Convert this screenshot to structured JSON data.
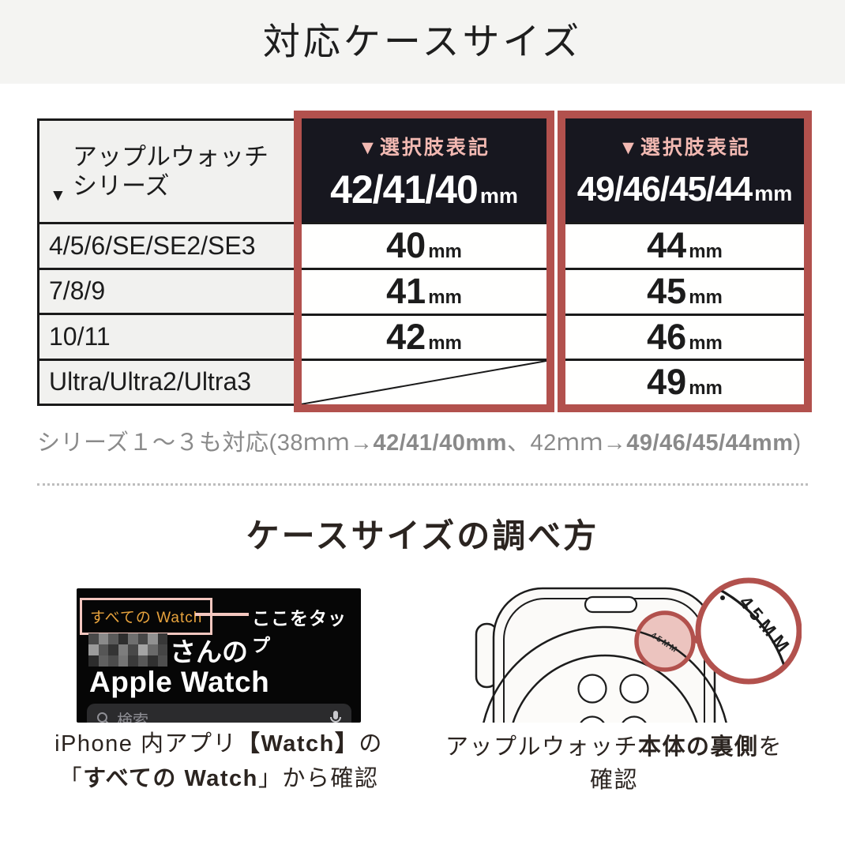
{
  "page": {
    "title": "対応ケースサイズ"
  },
  "table": {
    "series_header": {
      "arrow": "▼",
      "line1": "アップルウォッチ",
      "line2": "シリーズ"
    },
    "unit": "mm",
    "columns": [
      {
        "tag": "▼選択肢表記",
        "size": "42/41/40",
        "unit": "mm"
      },
      {
        "tag": "▼選択肢表記",
        "size": "49/46/45/44",
        "unit": "mm"
      }
    ],
    "rows": [
      {
        "series": "4/5/6/SE/SE2/SE3",
        "small": "40",
        "large": "44"
      },
      {
        "series": "7/8/9",
        "small": "41",
        "large": "45"
      },
      {
        "series": "10/11",
        "small": "42",
        "large": "46"
      },
      {
        "series": "Ultra/Ultra2/Ultra3",
        "small": "",
        "large": "49"
      }
    ]
  },
  "note": {
    "segments": [
      {
        "text": "シリーズ１〜３も対応(38ｍｍ→"
      },
      {
        "text": "42/41/40mm",
        "bold": true
      },
      {
        "text": "、42ｍｍ→"
      },
      {
        "text": "49/46/45/44mm",
        "bold": true
      },
      {
        "text": ")"
      }
    ]
  },
  "section2": {
    "title": "ケースサイズの調べ方"
  },
  "phone": {
    "label": "すべての Watch",
    "tap_hint": "ここをタップ",
    "owner_suffix": "さんの",
    "device_title": "Apple Watch",
    "search_placeholder": "検索",
    "mosaic_colors": [
      "#4a4a4a",
      "#8a8a8a",
      "#5a5a5a",
      "#2e2e2e",
      "#6f6f6f",
      "#474747",
      "#919191",
      "#383838",
      "#9b9b9b",
      "#565656",
      "#343434",
      "#7d7d7d",
      "#484848",
      "#a5a5a5",
      "#6a6a6a",
      "#454545",
      "#2c2c2c",
      "#606060",
      "#4c4c4c",
      "#757575",
      "#3a3a3a",
      "#585858",
      "#303030",
      "#4e4e4e"
    ]
  },
  "caption_left": {
    "line1": [
      {
        "text": "iPhone 内アプリ"
      },
      {
        "text": "【Watch】",
        "bold": true
      },
      {
        "text": "の"
      }
    ],
    "line2": [
      {
        "text": "「"
      },
      {
        "text": "すべての Watch",
        "bold": true
      },
      {
        "text": "」から確認"
      }
    ]
  },
  "watch": {
    "zoom_small_label": "45MM",
    "zoom_large_label": "45MM"
  },
  "caption_right": {
    "line1": [
      {
        "text": "アップルウォッチ"
      },
      {
        "text": "本体の裏側",
        "bold": true
      },
      {
        "text": "を"
      }
    ],
    "line2": "確認"
  },
  "colors": {
    "accent_red": "#b2514d",
    "header_dark": "#17171f",
    "pink_text": "#f2b9b2",
    "cell_gray": "#f1f1ef",
    "note_gray": "#8a8a8a",
    "label_orange": "#e8a33d",
    "label_pink_border": "#f4c7bf",
    "band_gray": "#f4f4f2"
  }
}
